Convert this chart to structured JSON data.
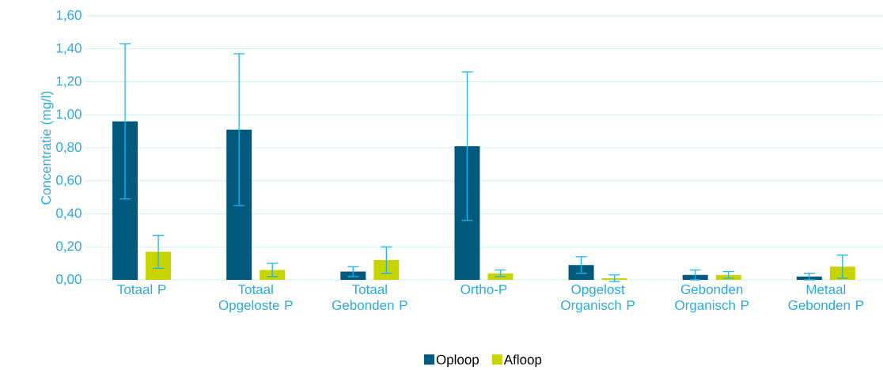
{
  "chart_data": {
    "type": "bar",
    "ylabel": "Concentratie (mg/l)",
    "categories": [
      "Totaal P",
      "Totaal Opgeloste P",
      "Totaal Gebonden P",
      "Ortho-P",
      "Opgelost Organisch P",
      "Gebonden Organisch P",
      "Metaal Gebonden P"
    ],
    "series": [
      {
        "name": "Oploop",
        "color": "#005a7e",
        "values": [
          0.96,
          0.91,
          0.05,
          0.81,
          0.09,
          0.03,
          0.02
        ],
        "errors": [
          0.47,
          0.46,
          0.03,
          0.45,
          0.05,
          0.03,
          0.02
        ]
      },
      {
        "name": "Afloop",
        "color": "#c8d400",
        "values": [
          0.17,
          0.06,
          0.12,
          0.04,
          0.01,
          0.03,
          0.08
        ],
        "errors": [
          0.1,
          0.04,
          0.08,
          0.02,
          0.02,
          0.02,
          0.07
        ]
      }
    ],
    "ylim": [
      0,
      1.6
    ],
    "yticks": [
      {
        "value": 0,
        "label": "0,00"
      },
      {
        "value": 0.2,
        "label": "0,20"
      },
      {
        "value": 0.4,
        "label": "0,40"
      },
      {
        "value": 0.6,
        "label": "0,60"
      },
      {
        "value": 0.8,
        "label": "0,80"
      },
      {
        "value": 1.0,
        "label": "1,00"
      },
      {
        "value": 1.2,
        "label": "1,20"
      },
      {
        "value": 1.4,
        "label": "1,40"
      },
      {
        "value": 1.6,
        "label": "1,60"
      }
    ],
    "grid": "y",
    "legend": "bottom"
  }
}
